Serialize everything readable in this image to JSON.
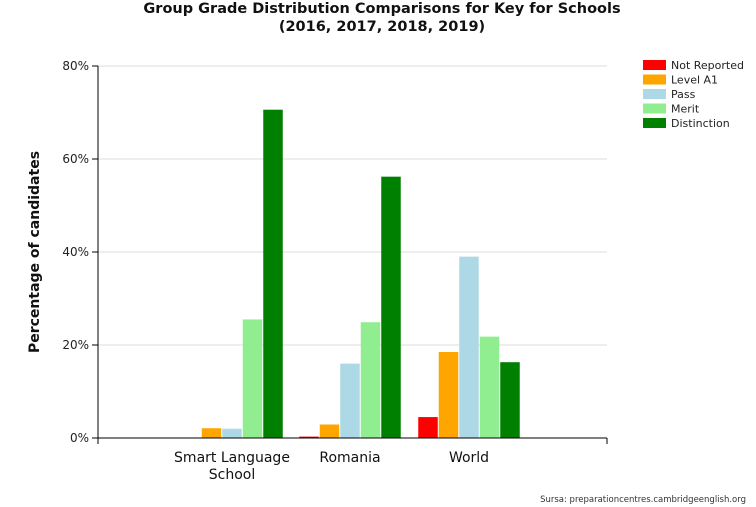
{
  "chart_data": {
    "type": "bar",
    "title": "Group Grade Distribution Comparisons for Key for Schools",
    "subtitle": "(2016, 2017, 2018, 2019)",
    "ylabel": "Percentage of candidates",
    "xlabel": "",
    "ylim": [
      0,
      80
    ],
    "yticks": [
      "0%",
      "20%",
      "40%",
      "60%",
      "80%"
    ],
    "categories": [
      "Smart Language School",
      "Romania",
      "World"
    ],
    "series": [
      {
        "name": "Not Reported",
        "color": "#ff0000",
        "values": [
          0,
          0.3,
          4.5
        ]
      },
      {
        "name": "Level A1",
        "color": "#ffa500",
        "values": [
          2.1,
          2.9,
          18.5
        ]
      },
      {
        "name": "Pass",
        "color": "#add8e6",
        "values": [
          2.0,
          16.0,
          39.0
        ]
      },
      {
        "name": "Merit",
        "color": "#90ee90",
        "values": [
          25.5,
          24.9,
          21.8
        ]
      },
      {
        "name": "Distinction",
        "color": "#008000",
        "values": [
          70.6,
          56.2,
          16.3
        ]
      }
    ],
    "grid": true,
    "legend_position": "top-right",
    "source": "Sursa: preparationcentres.cambridgeenglish.org"
  }
}
